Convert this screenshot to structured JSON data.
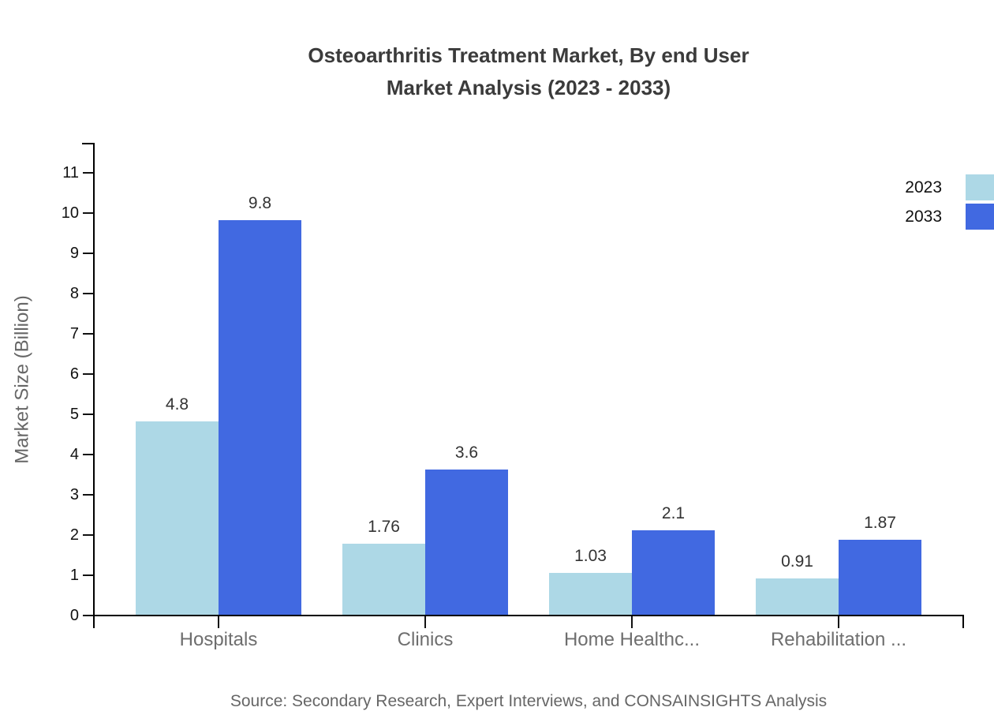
{
  "title": {
    "line1": "Osteoarthritis Treatment Market, By end User",
    "line2": "Market Analysis (2023 - 2033)"
  },
  "source": "Source: Secondary Research, Expert Interviews, and CONSAINSIGHTS Analysis",
  "legend": {
    "items": [
      {
        "label": "2023",
        "color": "#ADD8E6"
      },
      {
        "label": "2033",
        "color": "#4169E1"
      }
    ],
    "position": "top-right"
  },
  "chart_data": {
    "type": "bar",
    "title": "Osteoarthritis Treatment Market, By end User Market Analysis (2023 - 2033)",
    "categories": [
      "Hospitals",
      "Clinics",
      "Home Healthc...",
      "Rehabilitation ..."
    ],
    "series": [
      {
        "name": "2023",
        "color": "#ADD8E6",
        "values": [
          4.8,
          1.76,
          1.03,
          0.91
        ]
      },
      {
        "name": "2033",
        "color": "#4169E1",
        "values": [
          9.8,
          3.6,
          2.1,
          1.87
        ]
      }
    ],
    "xlabel": "",
    "ylabel": "Market Size (Billion)",
    "yticks": [
      0,
      1,
      2,
      3,
      4,
      5,
      6,
      7,
      8,
      9,
      10,
      11
    ],
    "ylim": [
      0,
      11.8
    ],
    "grid": false,
    "bar_value_labels": true,
    "axis_color": "#000000",
    "tick_label_color": "#111111",
    "category_label_color": "#6e6e6e",
    "value_label_color": "#333333",
    "title_color": "#3b3b3b"
  }
}
